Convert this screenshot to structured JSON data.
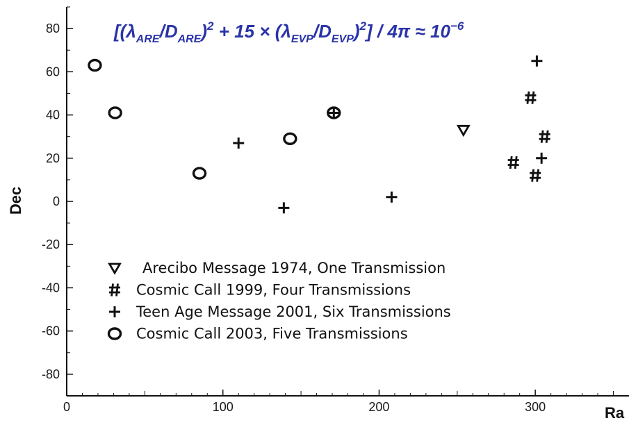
{
  "chart_data": {
    "type": "scatter",
    "title": "",
    "formula": {
      "lbrack": "[(",
      "lam1": "λ",
      "sub1": "ARE",
      "slash1": "/",
      "D1": "D",
      "sub2": "ARE",
      "close1": ")",
      "sup1": "2",
      "plus15": " + 15 × (",
      "lam2": "λ",
      "sub3": "EVP",
      "slash2": "/",
      "D2": "D",
      "sub4": "EVP",
      "close2": ")",
      "sup2": "2",
      "tail": "] / 4π ≈ 10",
      "sup3": "−6"
    },
    "xlabel": "Ra",
    "ylabel": "Dec",
    "xlim": [
      0,
      360
    ],
    "ylim": [
      -90,
      90
    ],
    "xticks": [
      0,
      100,
      200,
      300
    ],
    "yticks": [
      80,
      60,
      40,
      20,
      0,
      -20,
      -40,
      -60,
      -80
    ],
    "grid": false,
    "legend_position": "lower-left",
    "series": [
      {
        "name": "Arecibo Message 1974, One Transmission",
        "marker": "▽",
        "points": [
          {
            "x": 254,
            "y": 33
          }
        ]
      },
      {
        "name": "Cosmic Call 1999, Four Transmissions",
        "marker": "#",
        "points": [
          {
            "x": 297,
            "y": 48
          },
          {
            "x": 306,
            "y": 30
          },
          {
            "x": 286,
            "y": 18
          },
          {
            "x": 300,
            "y": 12
          }
        ]
      },
      {
        "name": "Teen Age Message 2001, Six Transmissions",
        "marker": "+",
        "points": [
          {
            "x": 301,
            "y": 65
          },
          {
            "x": 110,
            "y": 27
          },
          {
            "x": 139,
            "y": -3
          },
          {
            "x": 208,
            "y": 2
          },
          {
            "x": 304,
            "y": 20
          },
          {
            "x": 171,
            "y": 41
          }
        ]
      },
      {
        "name": "Cosmic Call 2003, Five Transmissions",
        "marker": "O",
        "points": [
          {
            "x": 18,
            "y": 63
          },
          {
            "x": 31,
            "y": 41
          },
          {
            "x": 85,
            "y": 13
          },
          {
            "x": 143,
            "y": 29
          },
          {
            "x": 171,
            "y": 41
          }
        ]
      }
    ]
  }
}
